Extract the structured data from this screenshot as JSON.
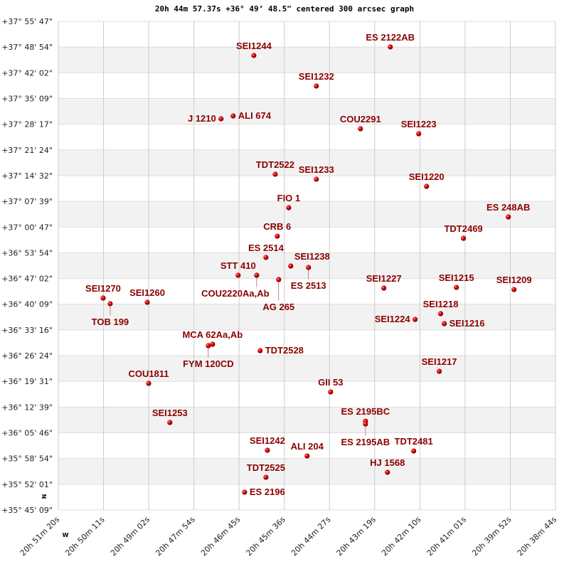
{
  "chart_data": {
    "type": "scatter",
    "title": "20h 44m 57.37s +36° 49’ 48.5\" centered 300 arcsec graph",
    "xlabel": "",
    "ylabel": "",
    "x_axis": "right ascension (degrees), increasing to the left",
    "xlim_deg": [
      312.8333,
      309.6667
    ],
    "ylim_deg": [
      35.7525,
      37.9297
    ],
    "grid": true,
    "alternating_bands": [
      "#ffffff",
      "#f2f2f2"
    ],
    "marker_color": "#dd0000",
    "label_color": "#8b0000",
    "direction_markers": {
      "north": "N",
      "west": "W"
    },
    "x_ticks": [
      "20h 51m 20s",
      "20h 50m 11s",
      "20h 49m 02s",
      "20h 47m 54s",
      "20h 46m 45s",
      "20h 45m 36s",
      "20h 44m 27s",
      "20h 43m 19s",
      "20h 42m 10s",
      "20h 41m 01s",
      "20h 39m 52s",
      "20h 38m 44s"
    ],
    "y_ticks": [
      "+37° 55' 47\"",
      "+37° 48' 54\"",
      "+37° 42' 02\"",
      "+37° 35' 09\"",
      "+37° 28' 17\"",
      "+37° 21' 24\"",
      "+37° 14' 32\"",
      "+37° 07' 39\"",
      "+37° 00' 47\"",
      "+36° 53' 54\"",
      "+36° 47' 02\"",
      "+36° 40' 09\"",
      "+36° 33' 16\"",
      "+36° 26' 24\"",
      "+36° 19' 31\"",
      "+36° 12' 39\"",
      "+36° 05' 46\"",
      "+35° 58' 54\"",
      "+35° 52' 01\"",
      "+35° 45' 09\""
    ],
    "points": [
      {
        "name": "SEI1244",
        "ra": 311.588,
        "dec": 37.7776
      },
      {
        "name": "ES 2122AB",
        "ra": 310.719,
        "dec": 37.8156
      },
      {
        "name": "SEI1232",
        "ra": 311.19,
        "dec": 37.6413
      },
      {
        "name": "J  1210",
        "ra": 311.797,
        "dec": 37.4955
      },
      {
        "name": "ALI 674",
        "ra": 311.72,
        "dec": 37.5082
      },
      {
        "name": "COU2291",
        "ra": 310.909,
        "dec": 37.4511
      },
      {
        "name": "SEI1223",
        "ra": 310.538,
        "dec": 37.4289
      },
      {
        "name": "TDT2522",
        "ra": 311.452,
        "dec": 37.2483
      },
      {
        "name": "SEI1233",
        "ra": 311.19,
        "dec": 37.2261
      },
      {
        "name": "SEI1220",
        "ra": 310.488,
        "dec": 37.1944
      },
      {
        "name": "FIO   1",
        "ra": 311.366,
        "dec": 37.0993
      },
      {
        "name": "ES  248AB",
        "ra": 309.967,
        "dec": 37.0581
      },
      {
        "name": "CRB   6",
        "ra": 311.439,
        "dec": 36.9725
      },
      {
        "name": "TDT2469",
        "ra": 310.253,
        "dec": 36.963
      },
      {
        "name": "ES 2514",
        "ra": 311.511,
        "dec": 36.8775
      },
      {
        "name": "SEI1238",
        "ra": 311.353,
        "dec": 36.8394
      },
      {
        "name": "ES 2513",
        "ra": 311.24,
        "dec": 36.8331
      },
      {
        "name": "STT 410",
        "ra": 311.688,
        "dec": 36.7982
      },
      {
        "name": "COU2220Aa,Ab",
        "ra": 311.57,
        "dec": 36.7982
      },
      {
        "name": "AG  265",
        "ra": 311.43,
        "dec": 36.7792
      },
      {
        "name": "SEI1227",
        "ra": 310.76,
        "dec": 36.7412
      },
      {
        "name": "SEI1215",
        "ra": 310.298,
        "dec": 36.7443
      },
      {
        "name": "SEI1209",
        "ra": 309.931,
        "dec": 36.7348
      },
      {
        "name": "SEI1270",
        "ra": 312.548,
        "dec": 36.6968
      },
      {
        "name": "TOB 199",
        "ra": 312.503,
        "dec": 36.6715
      },
      {
        "name": "SEI1260",
        "ra": 312.267,
        "dec": 36.6778
      },
      {
        "name": "SEI1218",
        "ra": 310.398,
        "dec": 36.6271
      },
      {
        "name": "SEI1224",
        "ra": 310.561,
        "dec": 36.6017
      },
      {
        "name": "SEI1216",
        "ra": 310.375,
        "dec": 36.5827
      },
      {
        "name": "MCA  62Aa,Ab",
        "ra": 311.851,
        "dec": 36.4908
      },
      {
        "name": "FYM 120CD",
        "ra": 311.878,
        "dec": 36.4845
      },
      {
        "name": "TDT2528",
        "ra": 311.548,
        "dec": 36.4623
      },
      {
        "name": "SEI1217",
        "ra": 310.407,
        "dec": 36.3704
      },
      {
        "name": "COU1811",
        "ra": 312.258,
        "dec": 36.3165
      },
      {
        "name": "GII  53",
        "ra": 311.099,
        "dec": 36.2784
      },
      {
        "name": "ES 2195BC",
        "ra": 310.877,
        "dec": 36.1485
      },
      {
        "name": "ES 2195AB",
        "ra": 310.877,
        "dec": 36.1358
      },
      {
        "name": "SEI1253",
        "ra": 312.123,
        "dec": 36.1422
      },
      {
        "name": "SEI1242",
        "ra": 311.502,
        "dec": 36.0186
      },
      {
        "name": "TDT2481",
        "ra": 310.57,
        "dec": 36.0154
      },
      {
        "name": "ALI 204",
        "ra": 311.249,
        "dec": 35.9932
      },
      {
        "name": "HJ 1568",
        "ra": 310.737,
        "dec": 35.9203
      },
      {
        "name": "TDT2525",
        "ra": 311.511,
        "dec": 35.8981
      },
      {
        "name": "ES 2196",
        "ra": 311.647,
        "dec": 35.8316
      }
    ]
  }
}
